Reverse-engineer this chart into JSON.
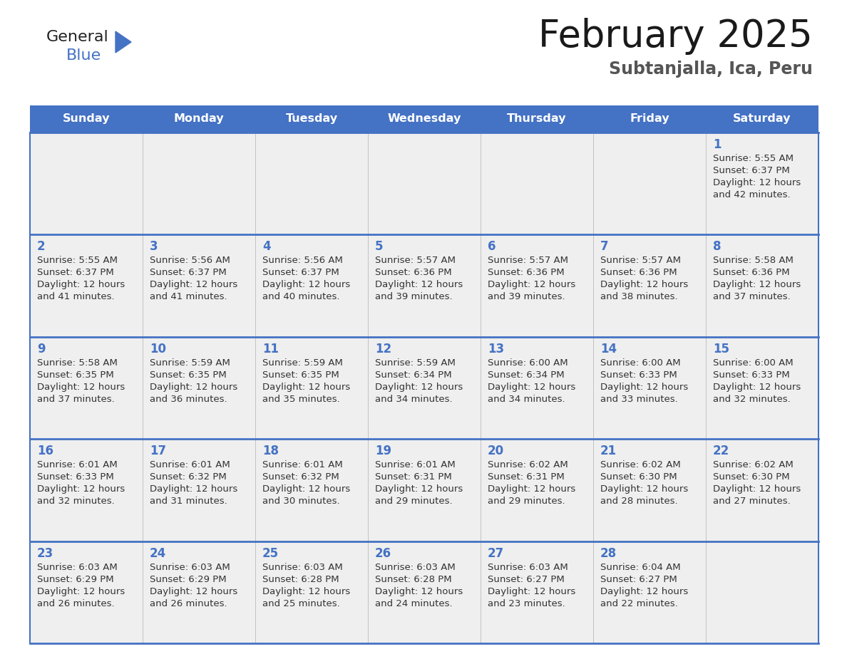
{
  "title": "February 2025",
  "subtitle": "Subtanjalla, Ica, Peru",
  "days_of_week": [
    "Sunday",
    "Monday",
    "Tuesday",
    "Wednesday",
    "Thursday",
    "Friday",
    "Saturday"
  ],
  "header_bg_color": "#4472C4",
  "header_text_color": "#FFFFFF",
  "cell_bg_color": "#EFEFEF",
  "day_number_color": "#4472C4",
  "divider_color": "#4472C4",
  "text_color": "#333333",
  "title_color": "#1a1a1a",
  "subtitle_color": "#555555",
  "logo_blue_color": "#4472C4",
  "logo_general_color": "#222222",
  "weeks": [
    [
      {
        "day": null,
        "sunrise": null,
        "sunset": null,
        "daylight_line1": null,
        "daylight_line2": null
      },
      {
        "day": null,
        "sunrise": null,
        "sunset": null,
        "daylight_line1": null,
        "daylight_line2": null
      },
      {
        "day": null,
        "sunrise": null,
        "sunset": null,
        "daylight_line1": null,
        "daylight_line2": null
      },
      {
        "day": null,
        "sunrise": null,
        "sunset": null,
        "daylight_line1": null,
        "daylight_line2": null
      },
      {
        "day": null,
        "sunrise": null,
        "sunset": null,
        "daylight_line1": null,
        "daylight_line2": null
      },
      {
        "day": null,
        "sunrise": null,
        "sunset": null,
        "daylight_line1": null,
        "daylight_line2": null
      },
      {
        "day": 1,
        "sunrise": "5:55 AM",
        "sunset": "6:37 PM",
        "daylight_line1": "Daylight: 12 hours",
        "daylight_line2": "and 42 minutes."
      }
    ],
    [
      {
        "day": 2,
        "sunrise": "5:55 AM",
        "sunset": "6:37 PM",
        "daylight_line1": "Daylight: 12 hours",
        "daylight_line2": "and 41 minutes."
      },
      {
        "day": 3,
        "sunrise": "5:56 AM",
        "sunset": "6:37 PM",
        "daylight_line1": "Daylight: 12 hours",
        "daylight_line2": "and 41 minutes."
      },
      {
        "day": 4,
        "sunrise": "5:56 AM",
        "sunset": "6:37 PM",
        "daylight_line1": "Daylight: 12 hours",
        "daylight_line2": "and 40 minutes."
      },
      {
        "day": 5,
        "sunrise": "5:57 AM",
        "sunset": "6:36 PM",
        "daylight_line1": "Daylight: 12 hours",
        "daylight_line2": "and 39 minutes."
      },
      {
        "day": 6,
        "sunrise": "5:57 AM",
        "sunset": "6:36 PM",
        "daylight_line1": "Daylight: 12 hours",
        "daylight_line2": "and 39 minutes."
      },
      {
        "day": 7,
        "sunrise": "5:57 AM",
        "sunset": "6:36 PM",
        "daylight_line1": "Daylight: 12 hours",
        "daylight_line2": "and 38 minutes."
      },
      {
        "day": 8,
        "sunrise": "5:58 AM",
        "sunset": "6:36 PM",
        "daylight_line1": "Daylight: 12 hours",
        "daylight_line2": "and 37 minutes."
      }
    ],
    [
      {
        "day": 9,
        "sunrise": "5:58 AM",
        "sunset": "6:35 PM",
        "daylight_line1": "Daylight: 12 hours",
        "daylight_line2": "and 37 minutes."
      },
      {
        "day": 10,
        "sunrise": "5:59 AM",
        "sunset": "6:35 PM",
        "daylight_line1": "Daylight: 12 hours",
        "daylight_line2": "and 36 minutes."
      },
      {
        "day": 11,
        "sunrise": "5:59 AM",
        "sunset": "6:35 PM",
        "daylight_line1": "Daylight: 12 hours",
        "daylight_line2": "and 35 minutes."
      },
      {
        "day": 12,
        "sunrise": "5:59 AM",
        "sunset": "6:34 PM",
        "daylight_line1": "Daylight: 12 hours",
        "daylight_line2": "and 34 minutes."
      },
      {
        "day": 13,
        "sunrise": "6:00 AM",
        "sunset": "6:34 PM",
        "daylight_line1": "Daylight: 12 hours",
        "daylight_line2": "and 34 minutes."
      },
      {
        "day": 14,
        "sunrise": "6:00 AM",
        "sunset": "6:33 PM",
        "daylight_line1": "Daylight: 12 hours",
        "daylight_line2": "and 33 minutes."
      },
      {
        "day": 15,
        "sunrise": "6:00 AM",
        "sunset": "6:33 PM",
        "daylight_line1": "Daylight: 12 hours",
        "daylight_line2": "and 32 minutes."
      }
    ],
    [
      {
        "day": 16,
        "sunrise": "6:01 AM",
        "sunset": "6:33 PM",
        "daylight_line1": "Daylight: 12 hours",
        "daylight_line2": "and 32 minutes."
      },
      {
        "day": 17,
        "sunrise": "6:01 AM",
        "sunset": "6:32 PM",
        "daylight_line1": "Daylight: 12 hours",
        "daylight_line2": "and 31 minutes."
      },
      {
        "day": 18,
        "sunrise": "6:01 AM",
        "sunset": "6:32 PM",
        "daylight_line1": "Daylight: 12 hours",
        "daylight_line2": "and 30 minutes."
      },
      {
        "day": 19,
        "sunrise": "6:01 AM",
        "sunset": "6:31 PM",
        "daylight_line1": "Daylight: 12 hours",
        "daylight_line2": "and 29 minutes."
      },
      {
        "day": 20,
        "sunrise": "6:02 AM",
        "sunset": "6:31 PM",
        "daylight_line1": "Daylight: 12 hours",
        "daylight_line2": "and 29 minutes."
      },
      {
        "day": 21,
        "sunrise": "6:02 AM",
        "sunset": "6:30 PM",
        "daylight_line1": "Daylight: 12 hours",
        "daylight_line2": "and 28 minutes."
      },
      {
        "day": 22,
        "sunrise": "6:02 AM",
        "sunset": "6:30 PM",
        "daylight_line1": "Daylight: 12 hours",
        "daylight_line2": "and 27 minutes."
      }
    ],
    [
      {
        "day": 23,
        "sunrise": "6:03 AM",
        "sunset": "6:29 PM",
        "daylight_line1": "Daylight: 12 hours",
        "daylight_line2": "and 26 minutes."
      },
      {
        "day": 24,
        "sunrise": "6:03 AM",
        "sunset": "6:29 PM",
        "daylight_line1": "Daylight: 12 hours",
        "daylight_line2": "and 26 minutes."
      },
      {
        "day": 25,
        "sunrise": "6:03 AM",
        "sunset": "6:28 PM",
        "daylight_line1": "Daylight: 12 hours",
        "daylight_line2": "and 25 minutes."
      },
      {
        "day": 26,
        "sunrise": "6:03 AM",
        "sunset": "6:28 PM",
        "daylight_line1": "Daylight: 12 hours",
        "daylight_line2": "and 24 minutes."
      },
      {
        "day": 27,
        "sunrise": "6:03 AM",
        "sunset": "6:27 PM",
        "daylight_line1": "Daylight: 12 hours",
        "daylight_line2": "and 23 minutes."
      },
      {
        "day": 28,
        "sunrise": "6:04 AM",
        "sunset": "6:27 PM",
        "daylight_line1": "Daylight: 12 hours",
        "daylight_line2": "and 22 minutes."
      },
      {
        "day": null,
        "sunrise": null,
        "sunset": null,
        "daylight_line1": null,
        "daylight_line2": null
      }
    ]
  ]
}
